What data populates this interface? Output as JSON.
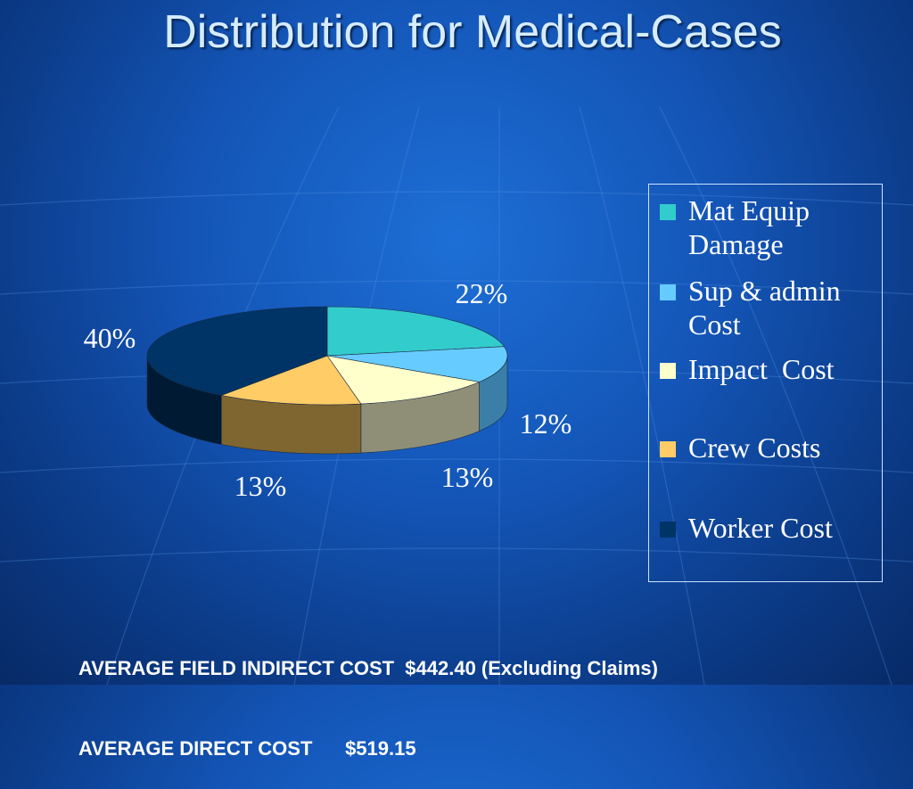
{
  "slide": {
    "title": "Distribution for Medical-Cases",
    "footer_line1": "AVERAGE FIELD INDIRECT COST  $442.40 (Excluding Claims)",
    "footer_line2": "AVERAGE DIRECT COST      $519.15"
  },
  "chart_data": {
    "type": "pie",
    "title": "Distribution for Medical-Cases",
    "legend_position": "right",
    "categories": [
      "Mat Equip Damage",
      "Sup & admin Cost",
      "Impact  Cost",
      "Crew Costs",
      "Worker Cost"
    ],
    "values": [
      22,
      12,
      13,
      13,
      40
    ],
    "data_labels": [
      "22%",
      "12%",
      "13%",
      "13%",
      "40%"
    ],
    "colors": [
      "#33CCCC",
      "#66CCFF",
      "#FFFFCC",
      "#FFCC66",
      "#003366"
    ],
    "side_colors": [
      "#2a8f8f",
      "#3b7fa8",
      "#8f8f78",
      "#7f6630",
      "#001a33"
    ]
  }
}
